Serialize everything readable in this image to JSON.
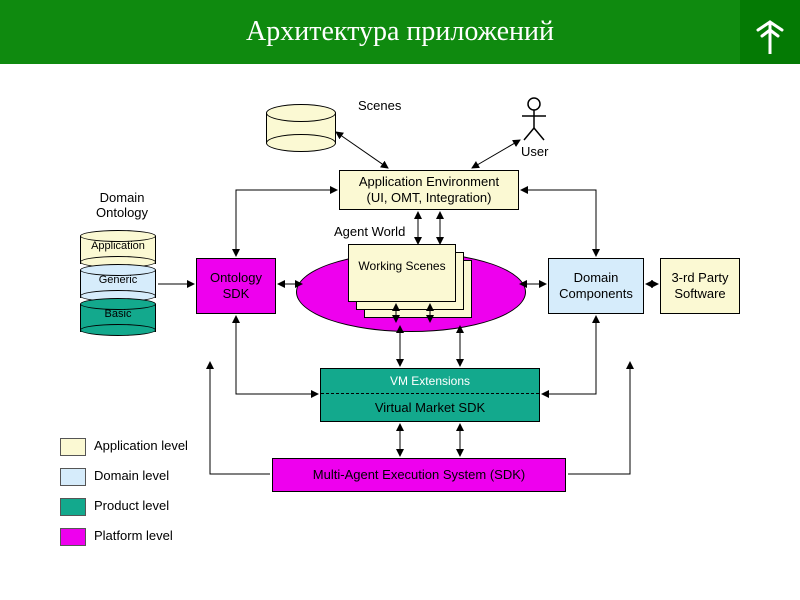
{
  "header": {
    "title": "Архитектура приложений",
    "bg": "#0f8a0f",
    "logo_bg": "#047a04"
  },
  "colors": {
    "app_level": "#fbf9d3",
    "domain_level": "#d6ecfb",
    "product_level": "#13a98d",
    "platform_level": "#ee00ee",
    "arrow": "#000000",
    "text": "#000000"
  },
  "labels": {
    "scenes": "Scenes",
    "user": "User",
    "domain_ontology": "Domain\nOntology",
    "agent_world": "Agent World",
    "working_scenes": "Working Scenes"
  },
  "nodes": {
    "app_env": {
      "text": "Application Environment\n(UI, OMT, Integration)",
      "level": "app_level"
    },
    "ontology_sdk": {
      "text": "Ontology\nSDK",
      "level": "platform_level"
    },
    "domain_components": {
      "text": "Domain\nComponents",
      "level": "domain_level"
    },
    "third_party": {
      "text": "3-rd Party\nSoftware",
      "level": "app_level"
    },
    "vm_ext": {
      "text": "VM Extensions",
      "level": "product_level"
    },
    "vm_sdk": {
      "text": "Virtual Market SDK",
      "level": "product_level"
    },
    "maes": {
      "text": "Multi-Agent Execution System (SDK)",
      "level": "platform_level"
    }
  },
  "ontology_stack": {
    "layers": [
      {
        "label": "Application",
        "color": "#fbf9d3"
      },
      {
        "label": "Generic",
        "color": "#d6ecfb"
      },
      {
        "label": "Basic",
        "color": "#13a98d"
      }
    ]
  },
  "legend": [
    {
      "level": "app_level",
      "label": "Application level"
    },
    {
      "level": "domain_level",
      "label": "Domain level"
    },
    {
      "level": "product_level",
      "label": "Product level"
    },
    {
      "level": "platform_level",
      "label": "Platform level"
    }
  ]
}
